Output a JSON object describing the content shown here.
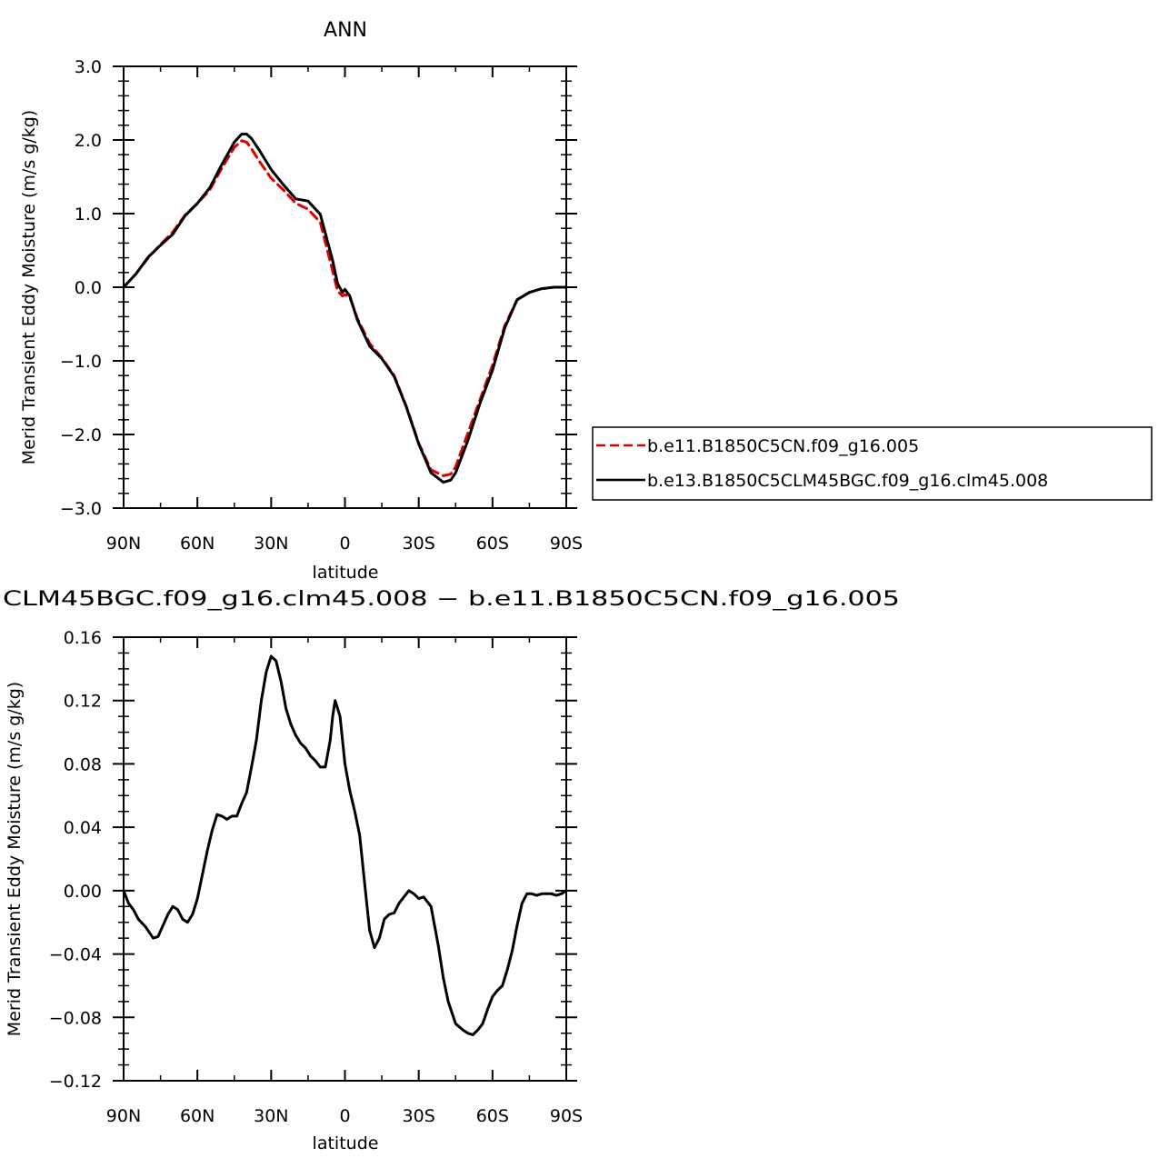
{
  "chart_data": [
    {
      "type": "line",
      "title": "ANN",
      "xlabel": "latitude",
      "ylabel": "Merid Transient Eddy Moisture (m/s g/kg)",
      "xlim": [
        90,
        -90
      ],
      "ylim": [
        -3.0,
        3.0
      ],
      "x_ticks": [
        90,
        60,
        30,
        0,
        -30,
        -60,
        -90
      ],
      "x_tick_labels": [
        "90N",
        "60N",
        "30N",
        "0",
        "30S",
        "60S",
        "90S"
      ],
      "y_ticks": [
        -3,
        -2,
        -1,
        0,
        1,
        2,
        3
      ],
      "y_tick_labels": [
        "−3.0",
        "−2.0",
        "−1.0",
        "0.0",
        "1.0",
        "2.0",
        "3.0"
      ],
      "legend_position": "right",
      "series": [
        {
          "name": "b.e11.B1850C5CN.f09_g16.005",
          "color": "#e00000",
          "dash": "dashed",
          "x": [
            90,
            85,
            80,
            75,
            70,
            65,
            60,
            55,
            50,
            45,
            42,
            40,
            38,
            35,
            30,
            25,
            20,
            15,
            10,
            5,
            3,
            1,
            0,
            -2,
            -5,
            -10,
            -15,
            -20,
            -25,
            -30,
            -35,
            -40,
            -43,
            -45,
            -50,
            -55,
            -60,
            -65,
            -70,
            -75,
            -80,
            -85,
            -90
          ],
          "values": [
            0.0,
            0.18,
            0.4,
            0.58,
            0.75,
            0.98,
            1.14,
            1.32,
            1.62,
            1.9,
            1.99,
            1.97,
            1.88,
            1.72,
            1.48,
            1.32,
            1.14,
            1.06,
            0.88,
            0.22,
            -0.05,
            -0.12,
            -0.1,
            -0.14,
            -0.42,
            -0.76,
            -0.96,
            -1.2,
            -1.62,
            -2.12,
            -2.48,
            -2.56,
            -2.54,
            -2.44,
            -1.98,
            -1.52,
            -1.06,
            -0.52,
            -0.17,
            -0.07,
            -0.02,
            0.0,
            0.0
          ]
        },
        {
          "name": "b.e13.B1850C5CLM45BGC.f09_g16.clm45.008",
          "color": "#000000",
          "dash": "solid",
          "x": [
            90,
            85,
            80,
            75,
            70,
            65,
            60,
            55,
            50,
            45,
            42,
            40,
            38,
            35,
            30,
            25,
            20,
            15,
            10,
            5,
            3,
            1,
            0,
            -2,
            -5,
            -10,
            -15,
            -20,
            -25,
            -30,
            -35,
            -40,
            -43,
            -45,
            -50,
            -55,
            -60,
            -65,
            -70,
            -75,
            -80,
            -85,
            -90
          ],
          "values": [
            0.0,
            0.18,
            0.41,
            0.57,
            0.72,
            0.97,
            1.14,
            1.35,
            1.67,
            1.97,
            2.08,
            2.08,
            2.02,
            1.87,
            1.6,
            1.39,
            1.2,
            1.17,
            0.99,
            0.36,
            0.05,
            -0.07,
            -0.03,
            -0.12,
            -0.44,
            -0.8,
            -0.97,
            -1.21,
            -1.63,
            -2.13,
            -2.52,
            -2.65,
            -2.62,
            -2.52,
            -2.08,
            -1.57,
            -1.13,
            -0.55,
            -0.17,
            -0.07,
            -0.02,
            0.0,
            0.0
          ]
        }
      ]
    },
    {
      "type": "line",
      "title": "СLM45BGC.f09_g16.clm45.008 − b.e11.B1850C5CN.f09_g16.005",
      "xlabel": "latitude",
      "ylabel": "Merid Transient Eddy Moisture (m/s g/kg)",
      "xlim": [
        90,
        -90
      ],
      "ylim": [
        -0.12,
        0.16
      ],
      "x_ticks": [
        90,
        60,
        30,
        0,
        -30,
        -60,
        -90
      ],
      "x_tick_labels": [
        "90N",
        "60N",
        "30N",
        "0",
        "30S",
        "60S",
        "90S"
      ],
      "y_ticks": [
        -0.12,
        -0.08,
        -0.04,
        0.0,
        0.04,
        0.08,
        0.12,
        0.16
      ],
      "y_tick_labels": [
        "−0.12",
        "−0.08",
        "−0.04",
        "0.00",
        "0.04",
        "0.08",
        "0.12",
        "0.16"
      ],
      "series": [
        {
          "color": "#000000",
          "dash": "solid",
          "x": [
            90,
            88,
            86,
            84,
            81,
            78,
            76,
            74,
            72,
            70,
            68,
            66,
            64,
            62,
            60,
            58,
            56,
            54,
            52,
            50,
            48,
            46,
            44,
            42,
            40,
            38,
            36,
            34,
            32,
            30,
            28,
            26,
            24,
            22,
            20,
            18,
            16,
            14,
            12,
            10,
            8,
            6,
            5,
            4,
            2,
            0,
            -2,
            -4,
            -6,
            -8,
            -10,
            -12,
            -14,
            -16,
            -18,
            -20,
            -22,
            -24,
            -26,
            -28,
            -30,
            -32,
            -35,
            -38,
            -40,
            -42,
            -45,
            -48,
            -50,
            -52,
            -54,
            -56,
            -58,
            -60,
            -62,
            -64,
            -66,
            -68,
            -70,
            -72,
            -74,
            -76,
            -78,
            -80,
            -82,
            -84,
            -86,
            -88,
            -90
          ],
          "values": [
            0.0,
            -0.008,
            -0.012,
            -0.018,
            -0.023,
            -0.03,
            -0.029,
            -0.022,
            -0.015,
            -0.01,
            -0.012,
            -0.018,
            -0.02,
            -0.015,
            -0.005,
            0.01,
            0.025,
            0.038,
            0.048,
            0.047,
            0.045,
            0.047,
            0.047,
            0.055,
            0.062,
            0.078,
            0.095,
            0.12,
            0.138,
            0.148,
            0.145,
            0.132,
            0.115,
            0.105,
            0.098,
            0.093,
            0.09,
            0.085,
            0.082,
            0.078,
            0.078,
            0.095,
            0.11,
            0.12,
            0.11,
            0.08,
            0.063,
            0.05,
            0.035,
            0.005,
            -0.025,
            -0.036,
            -0.03,
            -0.018,
            -0.015,
            -0.014,
            -0.008,
            -0.004,
            0.0,
            -0.002,
            -0.005,
            -0.004,
            -0.01,
            -0.035,
            -0.055,
            -0.07,
            -0.084,
            -0.088,
            -0.09,
            -0.091,
            -0.088,
            -0.084,
            -0.075,
            -0.067,
            -0.063,
            -0.06,
            -0.05,
            -0.038,
            -0.022,
            -0.008,
            -0.002,
            -0.002,
            -0.003,
            -0.002,
            -0.002,
            -0.002,
            -0.003,
            -0.002,
            0.0
          ]
        }
      ]
    }
  ]
}
